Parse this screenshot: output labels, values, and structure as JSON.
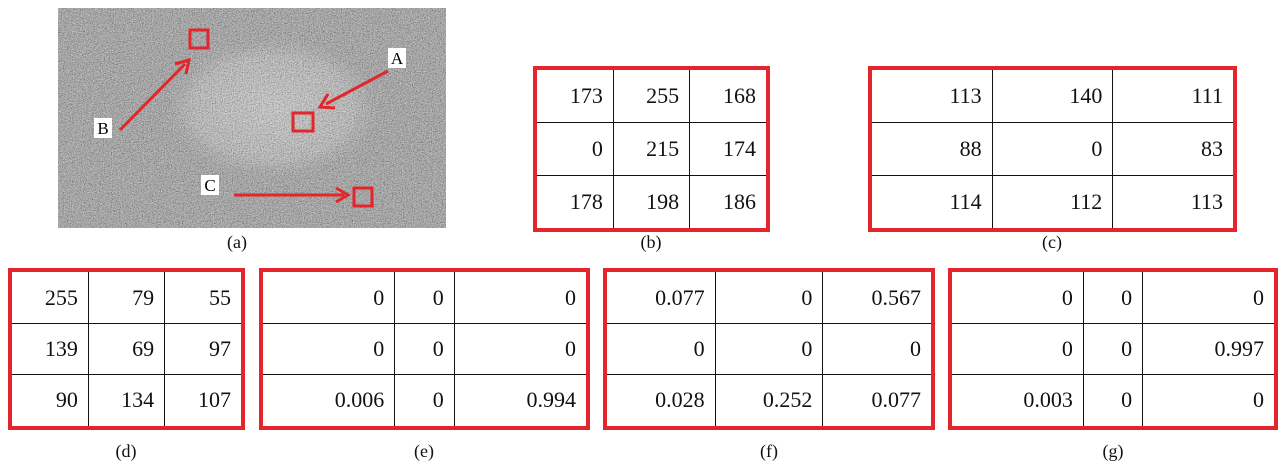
{
  "image": {
    "caption": "(a)",
    "labels": [
      "A",
      "B",
      "C"
    ]
  },
  "tables": [
    {
      "caption": "(b)",
      "rows": [
        [
          173,
          255,
          168
        ],
        [
          0,
          215,
          174
        ],
        [
          178,
          198,
          186
        ]
      ]
    },
    {
      "caption": "(c)",
      "rows": [
        [
          113,
          140,
          111
        ],
        [
          88,
          0,
          83
        ],
        [
          114,
          112,
          113
        ]
      ]
    },
    {
      "caption": "(d)",
      "rows": [
        [
          255,
          79,
          55
        ],
        [
          139,
          69,
          97
        ],
        [
          90,
          134,
          107
        ]
      ]
    },
    {
      "caption": "(e)",
      "rows": [
        [
          0,
          0,
          0
        ],
        [
          0,
          0,
          0
        ],
        [
          0.006,
          0,
          0.994
        ]
      ]
    },
    {
      "caption": "(f)",
      "rows": [
        [
          0.077,
          0,
          0.567
        ],
        [
          0,
          0,
          0
        ],
        [
          0.028,
          0.252,
          0.077
        ]
      ]
    },
    {
      "caption": "(g)",
      "rows": [
        [
          0,
          0,
          0
        ],
        [
          0,
          0,
          0.997
        ],
        [
          0.003,
          0,
          0
        ]
      ]
    }
  ]
}
